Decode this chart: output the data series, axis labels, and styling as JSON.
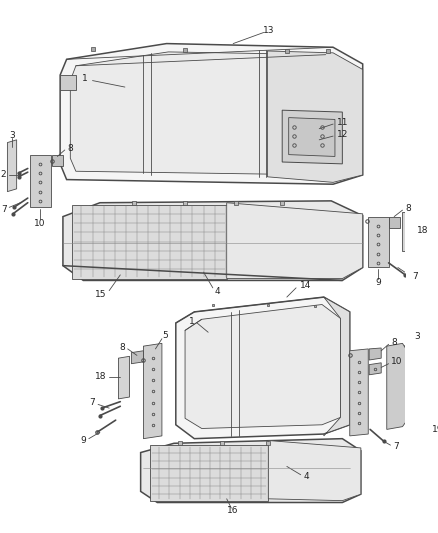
{
  "bg_color": "#ffffff",
  "line_color": "#4a4a4a",
  "lw_main": 1.1,
  "lw_thin": 0.6,
  "lw_label": 0.5,
  "label_fontsize": 6.5
}
